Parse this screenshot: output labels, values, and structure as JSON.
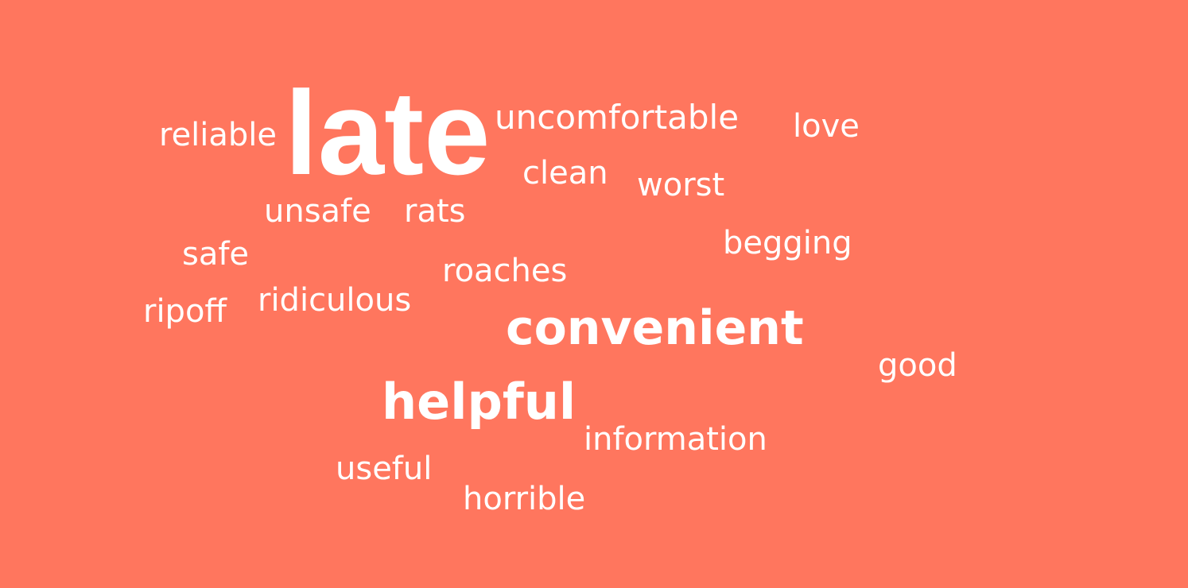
{
  "background_color": "#ff765e",
  "text_color": "#ffffff",
  "word_cloud": {
    "words": [
      {
        "id": "late",
        "text": "late"
      },
      {
        "id": "reliable",
        "text": "reliable"
      },
      {
        "id": "uncomfortable",
        "text": "uncomfortable"
      },
      {
        "id": "love",
        "text": "love"
      },
      {
        "id": "clean",
        "text": "clean"
      },
      {
        "id": "worst",
        "text": "worst"
      },
      {
        "id": "unsafe",
        "text": "unsafe"
      },
      {
        "id": "rats",
        "text": "rats"
      },
      {
        "id": "begging",
        "text": "begging"
      },
      {
        "id": "safe",
        "text": "safe"
      },
      {
        "id": "roaches",
        "text": "roaches"
      },
      {
        "id": "ridiculous",
        "text": "ridiculous"
      },
      {
        "id": "ripoff",
        "text": "ripoff"
      },
      {
        "id": "convenient",
        "text": "convenient"
      },
      {
        "id": "good",
        "text": "good"
      },
      {
        "id": "helpful",
        "text": "helpful"
      },
      {
        "id": "information",
        "text": "information"
      },
      {
        "id": "useful",
        "text": "useful"
      },
      {
        "id": "horrible",
        "text": "horrible"
      }
    ]
  }
}
